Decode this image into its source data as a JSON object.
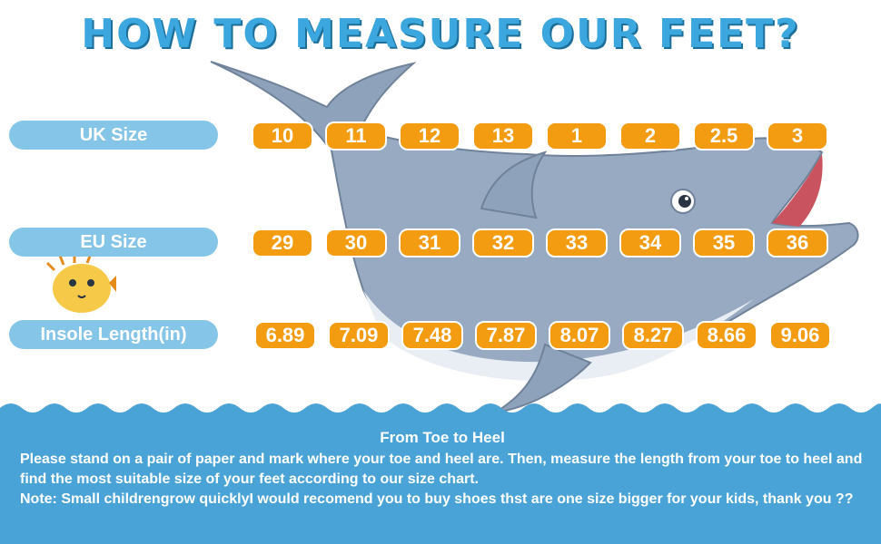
{
  "title": "HOW TO MEASURE OUR FEET?",
  "rows": [
    {
      "label": "UK Size",
      "values": [
        "10",
        "11",
        "12",
        "13",
        "1",
        "2",
        "2.5",
        "3"
      ]
    },
    {
      "label": "EU Size",
      "values": [
        "29",
        "30",
        "31",
        "32",
        "33",
        "34",
        "35",
        "36"
      ]
    },
    {
      "label": "Insole Length(in)",
      "values": [
        "6.89",
        "7.09",
        "7.48",
        "7.87",
        "8.07",
        "8.27",
        "8.66",
        "9.06"
      ]
    }
  ],
  "instructions": {
    "heading": "From Toe to Heel",
    "body": "Please stand on a pair of paper and mark where your toe and heel are. Then, measure the length from your toe to heel and find the most suitable size of your feet according to our size chart.",
    "note": "Note: Small childrengrow quicklyI would recomend you to buy shoes thst are one size bigger for your kids, thank you ??"
  },
  "colors": {
    "title": "#3ba7de",
    "label_bg": "#85c5e7",
    "cell_bg": "#f39b11",
    "water": "#4aa3d6",
    "dolphin": "#98aac1"
  },
  "icons": [
    "dolphin-illustration",
    "pufferfish-illustration",
    "wave-icon"
  ]
}
